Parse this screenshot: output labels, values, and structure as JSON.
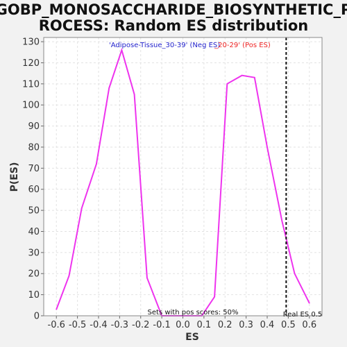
{
  "chart_data": {
    "type": "line",
    "title_lines": [
      "GOBP_MONOSACCHARIDE_BIOSYNTHETIC_P",
      "ROCESS: Random ES distribution"
    ],
    "xlabel": "ES",
    "ylabel": "P(ES)",
    "xlim": [
      -0.66,
      0.66
    ],
    "ylim": [
      0,
      132
    ],
    "xticks": [
      -0.6,
      -0.5,
      -0.4,
      -0.3,
      -0.2,
      -0.1,
      0.0,
      0.1,
      0.2,
      0.3,
      0.4,
      0.5,
      0.6
    ],
    "xtick_labels": [
      "-0.6",
      "-0.5",
      "-0.4",
      "-0.3",
      "-0.2",
      "-0.1",
      "0.0",
      "0.1",
      "0.2",
      "0.3",
      "0.4",
      "0.5",
      "0.6"
    ],
    "yticks": [
      0,
      10,
      20,
      30,
      40,
      50,
      60,
      70,
      80,
      90,
      100,
      110,
      120,
      130
    ],
    "grid": true,
    "series": [
      {
        "color": "#ee33ee",
        "x": [
          -0.6,
          -0.54,
          -0.48,
          -0.41,
          -0.35,
          -0.29,
          -0.23,
          -0.17,
          -0.1,
          -0.04,
          0.02,
          0.09,
          0.15,
          0.21,
          0.28,
          0.34,
          0.4,
          0.47,
          0.53,
          0.6
        ],
        "y": [
          3,
          19,
          51,
          72,
          108,
          126,
          105,
          18,
          0,
          0,
          0,
          0,
          9,
          110,
          114,
          113,
          80,
          45,
          20,
          6
        ]
      }
    ],
    "legend": {
      "placement": "top",
      "neg_label": "'Adipose-Tissue_30-39' (Neg ES)",
      "pos_label": "_20-29' (Pos ES)",
      "neg_color": "#2222cc",
      "pos_color": "#ee2222"
    },
    "real_es": {
      "x": 0.49,
      "label": "Real ES 0.5"
    },
    "pos_scores_text": "Sets with pos scores: 50%"
  }
}
